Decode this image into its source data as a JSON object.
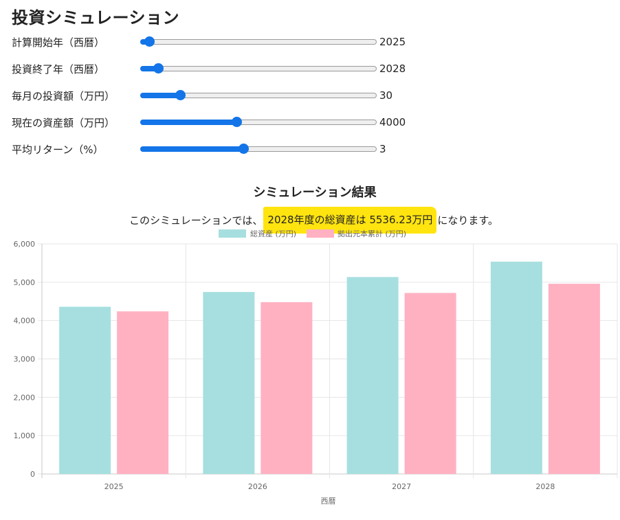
{
  "page": {
    "title": "投資シミュレーション"
  },
  "sliders": [
    {
      "label": "計算開始年（西暦）",
      "value": "2025",
      "min": 2024,
      "max": 2100,
      "current": 2025
    },
    {
      "label": "投資終了年（西暦）",
      "value": "2028",
      "min": 2024,
      "max": 2100,
      "current": 2028
    },
    {
      "label": "毎月の投資額（万円）",
      "value": "30",
      "min": 0,
      "max": 200,
      "current": 30
    },
    {
      "label": "現在の資産額（万円）",
      "value": "4000",
      "min": 0,
      "max": 10000,
      "current": 4000
    },
    {
      "label": "平均リターン（%）",
      "value": "3",
      "min": 0,
      "max": 7,
      "current": 3
    }
  ],
  "result": {
    "title": "シミュレーション結果",
    "prefix": "このシミュレーションでは、",
    "highlight": "2028年度の総資産は 5536.23万円",
    "suffix": "になります。"
  },
  "colors": {
    "accent": "#1375e8",
    "highlight": "#ffe40f",
    "series_total": "#a7dfe0",
    "series_principal": "#ffb1c2"
  },
  "chart_data": {
    "type": "bar",
    "categories": [
      "2025",
      "2026",
      "2027",
      "2028"
    ],
    "series": [
      {
        "name": "総資産 (万円)",
        "values": [
          4360,
          4745,
          5135,
          5536.23
        ]
      },
      {
        "name": "拠出元本累計 (万円)",
        "values": [
          4240,
          4480,
          4720,
          4960
        ]
      }
    ],
    "xlabel": "西暦",
    "ylabel": "",
    "ylim": [
      0,
      6000
    ],
    "yticks": [
      "0",
      "1,000",
      "2,000",
      "3,000",
      "4,000",
      "5,000",
      "6,000"
    ],
    "grid": true,
    "legend": "top-center"
  }
}
